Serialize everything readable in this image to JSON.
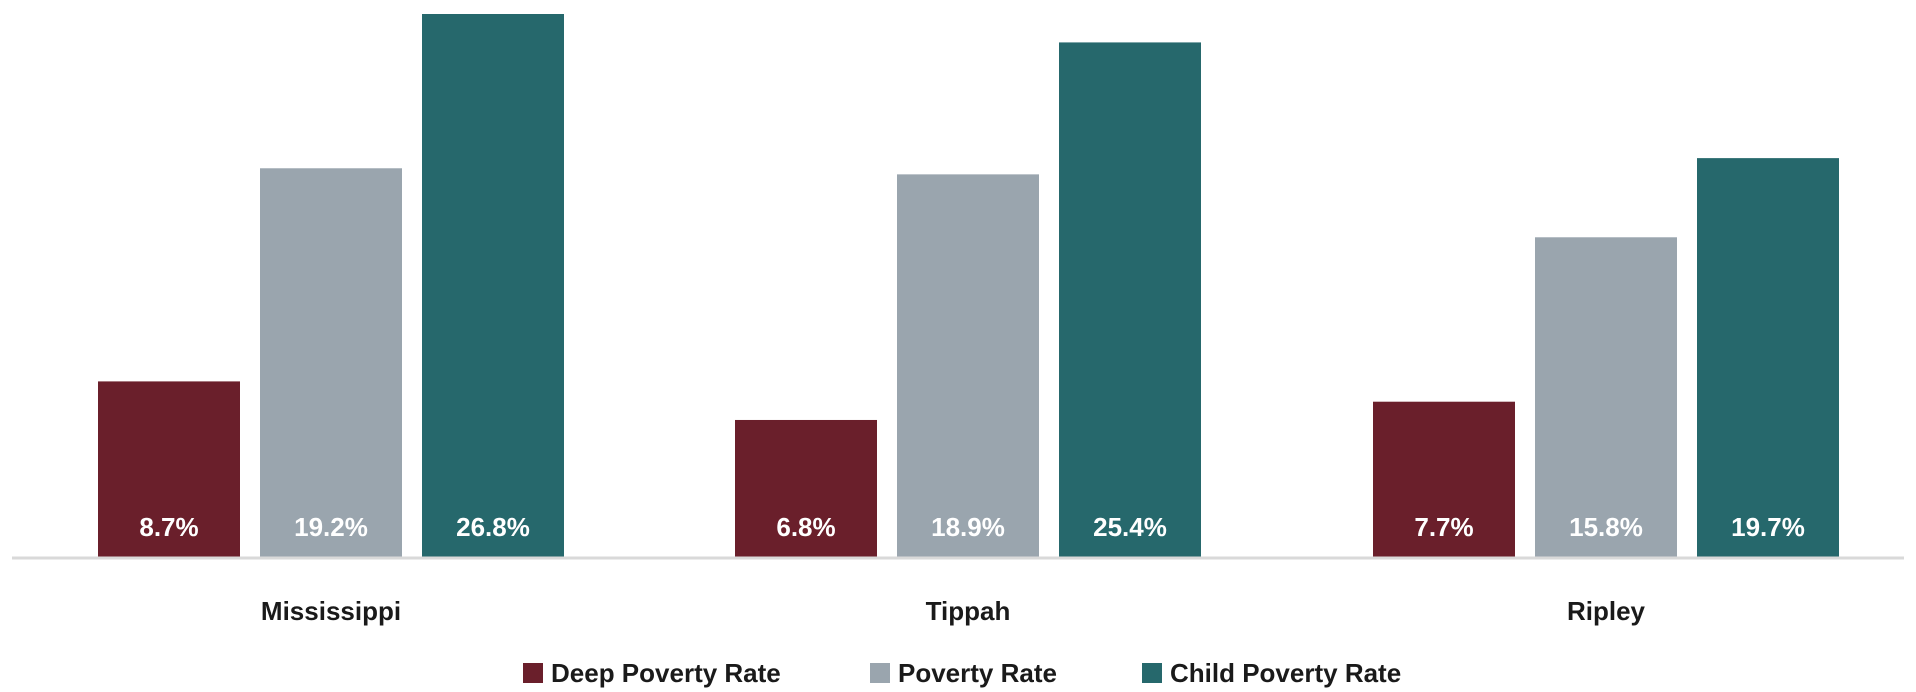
{
  "chart_data": {
    "type": "bar",
    "categories": [
      "Mississippi",
      "Tippah",
      "Ripley"
    ],
    "series": [
      {
        "name": "Deep Poverty Rate",
        "color": "#6a1f2b",
        "values": [
          8.7,
          6.8,
          7.7
        ],
        "labels": [
          "8.7%",
          "6.8%",
          "7.7%"
        ]
      },
      {
        "name": "Poverty Rate",
        "color": "#9aa5ae",
        "values": [
          19.2,
          18.9,
          15.8
        ],
        "labels": [
          "19.2%",
          "18.9%",
          "15.8%"
        ]
      },
      {
        "name": "Child Poverty Rate",
        "color": "#26686c",
        "values": [
          26.8,
          25.4,
          19.7
        ],
        "labels": [
          "26.8%",
          "25.4%",
          "19.7%"
        ]
      }
    ],
    "ylim": [
      0,
      26.8
    ],
    "grid": false,
    "legend": "bottom"
  }
}
